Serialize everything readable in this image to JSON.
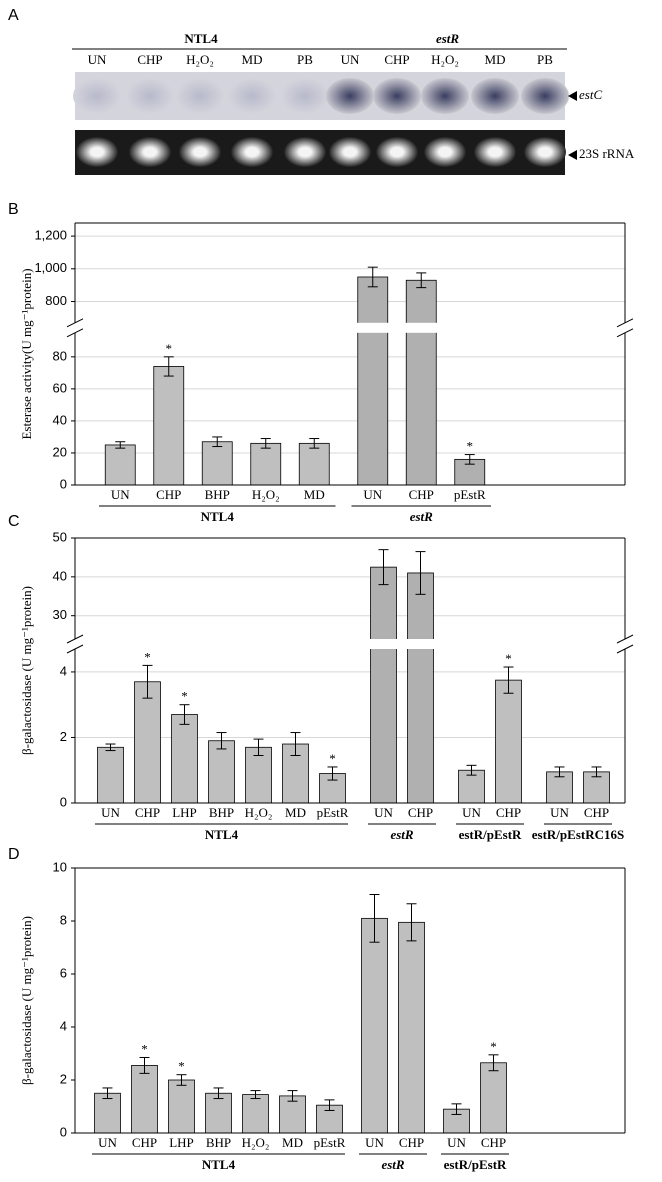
{
  "gel": {
    "panel": "A",
    "groups": [
      {
        "name": "NTL4",
        "italic": false,
        "lanes": [
          "UN",
          "CHP",
          "H₂O₂",
          "MD",
          "PB"
        ]
      },
      {
        "name": "estR",
        "italic": true,
        "lanes": [
          "UN",
          "CHP",
          "H₂O₂",
          "MD",
          "PB"
        ]
      }
    ],
    "bands": [
      "estC",
      "23S rRNA"
    ]
  },
  "chart_data": [
    {
      "type": "bar",
      "panel": "B",
      "ylabel": "Esterase activity(U mg⁻¹protein)",
      "color": "#bfbfbf",
      "grid": true,
      "ylim": [
        0,
        1280
      ],
      "ybreak": [
        95,
        670
      ],
      "yticks": [
        0,
        20,
        40,
        60,
        80,
        800,
        {
          "value": 1000,
          "label": "1,000"
        },
        {
          "value": 1200,
          "label": "1,200"
        }
      ],
      "groups": [
        {
          "name": "NTL4",
          "italic": false,
          "categories": [
            "UN",
            "CHP",
            "BHP",
            "H₂O₂",
            "MD"
          ],
          "values": [
            25,
            74,
            27,
            26,
            26
          ],
          "errors": [
            2,
            6,
            3,
            3,
            3
          ],
          "significance": [
            null,
            "*",
            null,
            null,
            null
          ]
        },
        {
          "name": "estR",
          "italic": true,
          "categories": [
            "UN",
            "CHP",
            "pEstR"
          ],
          "values": [
            950,
            930,
            16
          ],
          "errors": [
            60,
            45,
            3
          ],
          "significance": [
            null,
            null,
            "*"
          ]
        }
      ]
    },
    {
      "type": "bar",
      "panel": "C",
      "ylabel": "β-galactosidase (U mg⁻¹protein)",
      "color": "#bfbfbf",
      "grid": true,
      "ylim": [
        0,
        50
      ],
      "ybreak": [
        4.7,
        24
      ],
      "yticks": [
        0,
        2,
        4,
        30,
        40,
        50
      ],
      "groups": [
        {
          "name": "NTL4",
          "italic": false,
          "categories": [
            "UN",
            "CHP",
            "LHP",
            "BHP",
            "H₂O₂",
            "MD",
            "pEstR"
          ],
          "values": [
            1.7,
            3.7,
            2.7,
            1.9,
            1.7,
            1.8,
            0.9
          ],
          "errors": [
            0.1,
            0.5,
            0.3,
            0.25,
            0.25,
            0.35,
            0.2
          ],
          "significance": [
            null,
            "*",
            "*",
            null,
            null,
            null,
            "*"
          ]
        },
        {
          "name": "estR",
          "italic": true,
          "categories": [
            "UN",
            "CHP"
          ],
          "values": [
            42.5,
            41
          ],
          "errors": [
            4.5,
            5.5
          ],
          "significance": [
            null,
            null
          ]
        },
        {
          "name": "estR/pEstR",
          "italic": false,
          "categories": [
            "UN",
            "CHP"
          ],
          "values": [
            1.0,
            3.75
          ],
          "errors": [
            0.15,
            0.4
          ],
          "significance": [
            null,
            "*"
          ]
        },
        {
          "name": "estR/pEstRC16S",
          "italic": false,
          "categories": [
            "UN",
            "CHP"
          ],
          "values": [
            0.95,
            0.95
          ],
          "errors": [
            0.15,
            0.15
          ],
          "significance": [
            null,
            null
          ]
        }
      ]
    },
    {
      "type": "bar",
      "panel": "D",
      "ylabel": "β-galactosidase (U mg⁻¹protein)",
      "color": "#bfbfbf",
      "grid": false,
      "ylim": [
        0,
        10
      ],
      "yticks": [
        0,
        2,
        4,
        6,
        8,
        10
      ],
      "groups": [
        {
          "name": "NTL4",
          "italic": false,
          "categories": [
            "UN",
            "CHP",
            "LHP",
            "BHP",
            "H₂O₂",
            "MD",
            "pEstR"
          ],
          "values": [
            1.5,
            2.55,
            2.0,
            1.5,
            1.45,
            1.4,
            1.05
          ],
          "errors": [
            0.2,
            0.3,
            0.2,
            0.2,
            0.15,
            0.2,
            0.2
          ],
          "significance": [
            null,
            "*",
            "*",
            null,
            null,
            null,
            null
          ]
        },
        {
          "name": "estR",
          "italic": true,
          "categories": [
            "UN",
            "CHP"
          ],
          "values": [
            8.1,
            7.95
          ],
          "errors": [
            0.9,
            0.7
          ],
          "significance": [
            null,
            null
          ]
        },
        {
          "name": "estR/pEstR",
          "italic": false,
          "categories": [
            "UN",
            "CHP"
          ],
          "values": [
            0.9,
            2.65
          ],
          "errors": [
            0.2,
            0.3
          ],
          "significance": [
            null,
            "*"
          ]
        }
      ]
    }
  ]
}
